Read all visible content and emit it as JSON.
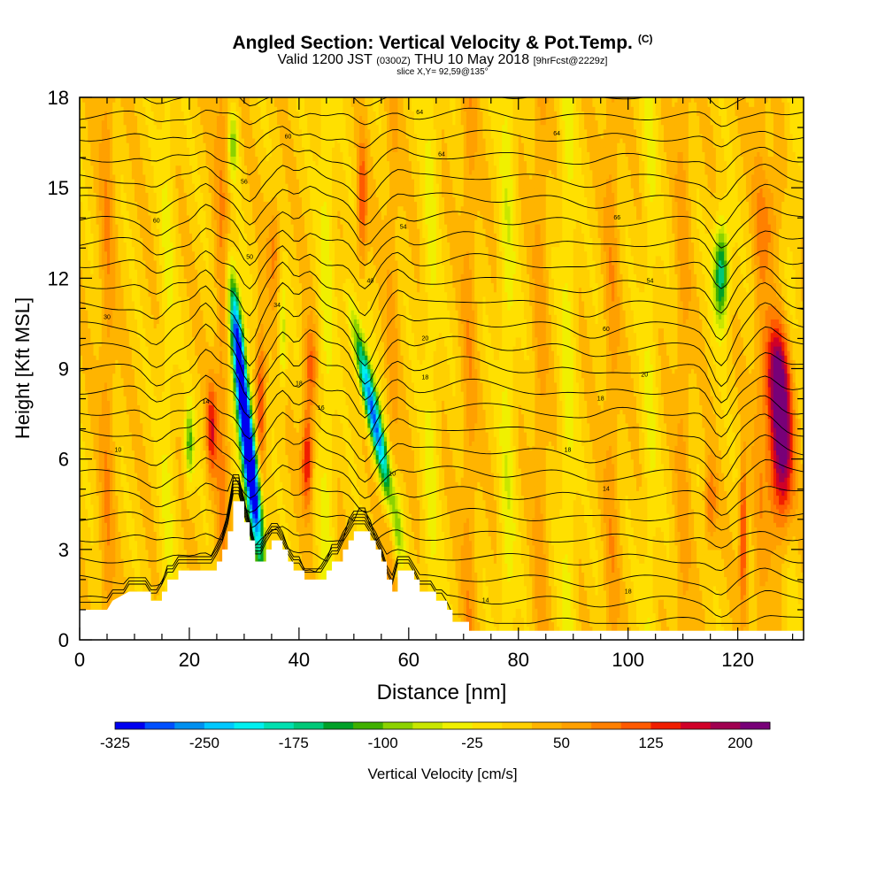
{
  "titles": {
    "main": "Angled Section: Vertical Velocity & Pot.Temp.",
    "main_mark": "(C)",
    "valid_prefix": "Valid 1200 JST",
    "valid_utc": "(0300Z)",
    "valid_date": "THU 10 May 2018",
    "forecast": "[9hrFcst@2229z]",
    "slice": "slice X,Y= 92,59@135°"
  },
  "chart_data": {
    "type": "heatmap",
    "title": "Angled Section: Vertical Velocity & Pot.Temp.",
    "xlabel": "Distance [nm]",
    "ylabel": "Height [Kft MSL]",
    "xlim": [
      0,
      132
    ],
    "ylim": [
      0,
      18
    ],
    "x_ticks": [
      0,
      20,
      40,
      60,
      80,
      100,
      120
    ],
    "y_ticks": [
      0,
      3,
      6,
      9,
      12,
      15,
      18
    ],
    "colorbar": {
      "label": "Vertical Velocity [cm/s]",
      "tick_labels": [
        "-325",
        "-250",
        "-175",
        "-100",
        "-25",
        "50",
        "125",
        "200"
      ],
      "levels": [
        -325,
        -300,
        -275,
        -250,
        -225,
        -200,
        -175,
        -150,
        -125,
        -100,
        -75,
        -50,
        -25,
        0,
        25,
        50,
        75,
        100,
        125,
        150,
        175,
        200
      ],
      "colors": [
        "#0000f0",
        "#0050ff",
        "#0090f0",
        "#00c8ff",
        "#00f0f0",
        "#00e0b0",
        "#00c878",
        "#00a028",
        "#40b000",
        "#8cd200",
        "#c8e600",
        "#f0f000",
        "#ffe000",
        "#ffd000",
        "#ffb400",
        "#ffa000",
        "#ff8000",
        "#ff5a00",
        "#f01e00",
        "#d00028",
        "#a00050",
        "#780078"
      ]
    },
    "terrain_kft": [
      [
        0,
        1
      ],
      [
        5,
        1
      ],
      [
        6,
        1.3
      ],
      [
        9,
        1.6
      ],
      [
        13,
        1.6
      ],
      [
        13,
        1.3
      ],
      [
        15,
        1.3
      ],
      [
        15,
        1.6
      ],
      [
        16,
        1.6
      ],
      [
        16,
        2
      ],
      [
        18,
        2
      ],
      [
        18,
        2.3
      ],
      [
        25,
        2.3
      ],
      [
        25,
        2.6
      ],
      [
        26,
        2.6
      ],
      [
        26,
        3
      ],
      [
        27,
        3
      ],
      [
        27,
        3.6
      ],
      [
        28,
        3.6
      ],
      [
        28,
        4.6
      ],
      [
        30,
        4.6
      ],
      [
        30,
        3.9
      ],
      [
        31,
        3.9
      ],
      [
        31,
        3.3
      ],
      [
        32,
        3.3
      ],
      [
        32,
        2.6
      ],
      [
        34,
        2.6
      ],
      [
        34,
        3
      ],
      [
        35,
        3
      ],
      [
        35,
        3.3
      ],
      [
        37,
        3.3
      ],
      [
        37,
        3
      ],
      [
        38,
        3
      ],
      [
        38,
        2.6
      ],
      [
        39,
        2.6
      ],
      [
        39,
        2.3
      ],
      [
        41,
        2.3
      ],
      [
        41,
        2
      ],
      [
        45,
        2
      ],
      [
        45,
        2.3
      ],
      [
        46,
        2.3
      ],
      [
        46,
        2.6
      ],
      [
        48,
        2.6
      ],
      [
        48,
        3
      ],
      [
        49,
        3
      ],
      [
        49,
        3.3
      ],
      [
        50,
        3.3
      ],
      [
        50,
        3.6
      ],
      [
        53,
        3.6
      ],
      [
        53,
        3.3
      ],
      [
        54,
        3.3
      ],
      [
        54,
        3
      ],
      [
        55,
        3
      ],
      [
        55,
        2.6
      ],
      [
        56,
        2.6
      ],
      [
        56,
        2
      ],
      [
        57,
        2
      ],
      [
        57,
        1.6
      ],
      [
        58,
        1.6
      ],
      [
        58,
        2.3
      ],
      [
        61,
        2.3
      ],
      [
        61,
        2
      ],
      [
        62,
        2
      ],
      [
        62,
        1.6
      ],
      [
        65,
        1.6
      ],
      [
        65,
        1.3
      ],
      [
        67,
        1.3
      ],
      [
        67,
        1
      ],
      [
        68,
        1
      ],
      [
        68,
        0.6
      ],
      [
        71,
        0.6
      ],
      [
        71,
        0.3
      ],
      [
        132,
        0.3
      ]
    ],
    "theta_contour_labels": [
      {
        "label": "10",
        "x": 7,
        "y": 6.3
      },
      {
        "label": "14",
        "x": 23,
        "y": 7.9
      },
      {
        "label": "18",
        "x": 40,
        "y": 8.5
      },
      {
        "label": "16",
        "x": 44,
        "y": 7.7
      },
      {
        "label": "10",
        "x": 57,
        "y": 5.5
      },
      {
        "label": "14",
        "x": 74,
        "y": 1.3
      },
      {
        "label": "18",
        "x": 89,
        "y": 6.3
      },
      {
        "label": "14",
        "x": 96,
        "y": 5.0
      },
      {
        "label": "18",
        "x": 100,
        "y": 1.6
      },
      {
        "label": "18",
        "x": 95,
        "y": 8.0
      },
      {
        "label": "20",
        "x": 103,
        "y": 8.8
      },
      {
        "label": "18",
        "x": 63,
        "y": 8.7
      },
      {
        "label": "20",
        "x": 63,
        "y": 10.0
      },
      {
        "label": "30",
        "x": 5,
        "y": 10.7
      },
      {
        "label": "34",
        "x": 36,
        "y": 11.1
      },
      {
        "label": "40",
        "x": 53,
        "y": 11.9
      },
      {
        "label": "50",
        "x": 31,
        "y": 12.7
      },
      {
        "label": "54",
        "x": 59,
        "y": 13.7
      },
      {
        "label": "54",
        "x": 104,
        "y": 11.9
      },
      {
        "label": "60",
        "x": 96,
        "y": 10.3
      },
      {
        "label": "60",
        "x": 14,
        "y": 13.9
      },
      {
        "label": "56",
        "x": 30,
        "y": 15.2
      },
      {
        "label": "60",
        "x": 38,
        "y": 16.7
      },
      {
        "label": "64",
        "x": 62,
        "y": 17.5
      },
      {
        "label": "64",
        "x": 66,
        "y": 16.1
      },
      {
        "label": "64",
        "x": 87,
        "y": 16.8
      },
      {
        "label": "66",
        "x": 98,
        "y": 14.0
      }
    ]
  }
}
